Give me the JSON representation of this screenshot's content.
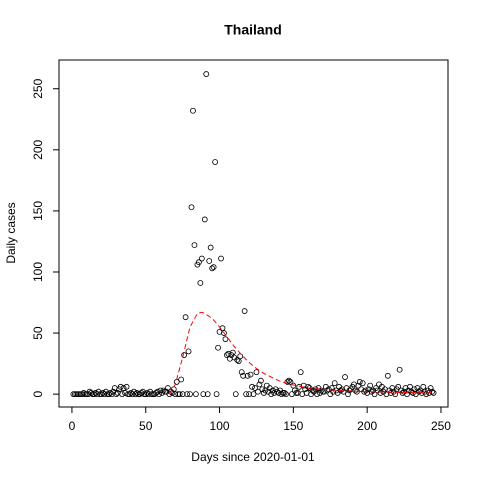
{
  "chart_data": {
    "type": "scatter",
    "title": "Thailand",
    "xlabel": "Days since 2020-01-01",
    "ylabel": "Daily cases",
    "xlim": [
      -8.76,
      254.76
    ],
    "ylim": [
      -10.52,
      273.52
    ],
    "xticks": [
      0,
      50,
      100,
      150,
      200,
      250
    ],
    "yticks": [
      0,
      50,
      100,
      150,
      200,
      250
    ],
    "series": [
      {
        "style": "points",
        "color": "#000000",
        "x": [
          1,
          2,
          3,
          4,
          5,
          6,
          7,
          8,
          9,
          10,
          11,
          12,
          13,
          14,
          15,
          16,
          17,
          18,
          19,
          20,
          21,
          22,
          23,
          24,
          25,
          26,
          27,
          28,
          29,
          30,
          31,
          32,
          33,
          34,
          35,
          36,
          37,
          38,
          39,
          40,
          41,
          42,
          43,
          44,
          45,
          46,
          47,
          48,
          49,
          50,
          51,
          52,
          53,
          54,
          55,
          56,
          57,
          58,
          59,
          60,
          61,
          62,
          63,
          64,
          65,
          66,
          67,
          68,
          69,
          70,
          71,
          72,
          73,
          74,
          75,
          76,
          77,
          78,
          79,
          80,
          81,
          82,
          83,
          84,
          85,
          86,
          87,
          88,
          89,
          90,
          91,
          92,
          93,
          94,
          95,
          96,
          97,
          98,
          99,
          100,
          101,
          102,
          103,
          104,
          105,
          106,
          107,
          108,
          109,
          110,
          111,
          112,
          113,
          114,
          115,
          116,
          117,
          118,
          119,
          120,
          121,
          122,
          123,
          124,
          125,
          126,
          127,
          128,
          129,
          130,
          131,
          132,
          133,
          134,
          135,
          136,
          137,
          138,
          139,
          140,
          141,
          142,
          143,
          144,
          145,
          146,
          147,
          148,
          149,
          150,
          151,
          152,
          153,
          154,
          155,
          156,
          157,
          158,
          159,
          160,
          161,
          162,
          163,
          164,
          165,
          166,
          167,
          168,
          169,
          170,
          171,
          172,
          173,
          174,
          175,
          176,
          177,
          178,
          179,
          180,
          181,
          182,
          183,
          184,
          185,
          186,
          187,
          188,
          189,
          190,
          191,
          192,
          193,
          194,
          195,
          196,
          197,
          198,
          199,
          200,
          201,
          202,
          203,
          204,
          205,
          206,
          207,
          208,
          209,
          210,
          211,
          212,
          213,
          214,
          215,
          216,
          217,
          218,
          219,
          220,
          221,
          222,
          223,
          224,
          225,
          226,
          227,
          228,
          229,
          230,
          231,
          232,
          233,
          234,
          235,
          236,
          237,
          238,
          239,
          240,
          241,
          242,
          243,
          244,
          245
        ],
        "values": [
          0,
          0,
          0,
          0,
          0,
          0,
          0,
          1,
          0,
          0,
          0,
          2,
          1,
          0,
          0,
          1,
          0,
          2,
          0,
          0,
          1,
          0,
          2,
          0,
          0,
          1,
          0,
          2,
          5,
          0,
          1,
          4,
          6,
          0,
          5,
          1,
          6,
          0,
          0,
          1,
          0,
          2,
          0,
          1,
          0,
          0,
          1,
          2,
          0,
          0,
          1,
          0,
          2,
          0,
          0,
          0,
          1,
          2,
          0,
          3,
          1,
          3,
          2,
          2,
          5,
          0,
          2,
          1,
          4,
          0,
          10,
          0,
          0,
          12,
          0,
          32,
          63,
          0,
          35,
          0,
          153,
          232,
          122,
          0,
          106,
          108,
          91,
          111,
          0,
          143,
          262,
          0,
          109,
          120,
          103,
          104,
          190,
          0,
          38,
          51,
          111,
          54,
          50,
          45,
          32,
          33,
          29,
          32,
          34,
          30,
          0,
          28,
          27,
          31,
          18,
          15,
          68,
          0,
          15,
          0,
          16,
          6,
          0,
          5,
          18,
          2,
          8,
          11,
          4,
          1,
          3,
          7,
          2,
          5,
          0,
          3,
          1,
          4,
          2,
          1,
          3,
          0,
          1,
          1,
          0,
          10,
          11,
          10,
          0,
          7,
          3,
          1,
          1,
          6,
          18,
          0,
          7,
          4,
          1,
          6,
          5,
          0,
          3,
          2,
          4,
          0,
          5,
          1,
          3,
          2,
          2,
          6,
          3,
          4,
          0,
          5,
          2,
          9,
          3,
          1,
          6,
          3,
          4,
          2,
          14,
          5,
          0,
          3,
          4,
          6,
          8,
          3,
          2,
          7,
          10,
          4,
          9,
          2,
          3,
          1,
          4,
          7,
          2,
          3,
          0,
          5,
          3,
          8,
          1,
          6,
          2,
          4,
          0,
          15,
          3,
          1,
          5,
          2,
          0,
          4,
          6,
          20,
          3,
          1,
          2,
          5,
          0,
          3,
          6,
          2,
          1,
          4,
          0,
          5,
          2,
          3,
          1,
          6,
          2,
          0,
          3,
          1,
          5,
          2,
          1
        ]
      },
      {
        "style": "dashed",
        "color": "#ff0000",
        "x": [
          66,
          70,
          75,
          80,
          85,
          88,
          90,
          95,
          100,
          105,
          110,
          115,
          120,
          125,
          130,
          135,
          140,
          145,
          150,
          160,
          170,
          180,
          190,
          200,
          220,
          245
        ],
        "values": [
          0,
          8,
          30,
          55,
          66,
          67,
          66,
          62,
          55,
          47,
          39,
          32,
          26,
          21,
          17,
          14,
          11,
          9,
          7.5,
          5,
          4,
          3,
          2.5,
          2,
          1.5,
          1
        ]
      }
    ]
  }
}
